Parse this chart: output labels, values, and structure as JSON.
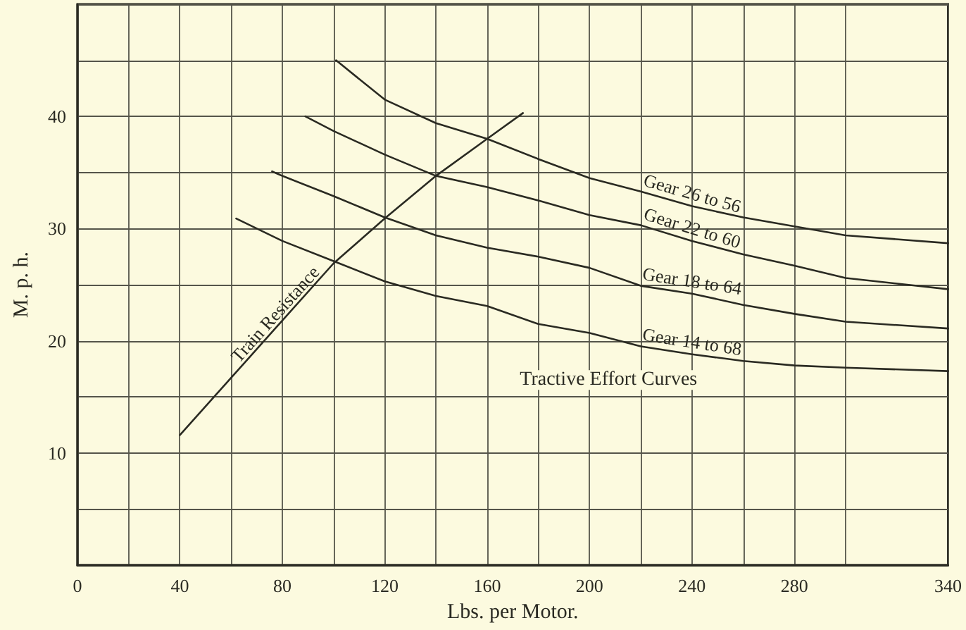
{
  "chart_data": {
    "type": "line",
    "xlabel": "Lbs. per Motor.",
    "ylabel": "M. p. h.",
    "xlim": [
      0,
      340
    ],
    "ylim": [
      0,
      50
    ],
    "xticks": [
      0,
      {
        "value": 20,
        "label": null
      },
      40,
      {
        "value": 60,
        "label": null
      },
      80,
      {
        "value": 100,
        "label": null
      },
      120,
      {
        "value": 140,
        "label": null
      },
      160,
      {
        "value": 180,
        "label": null
      },
      200,
      {
        "value": 220,
        "label": null
      },
      240,
      {
        "value": 260,
        "label": null
      },
      280,
      {
        "value": 300,
        "label": null
      },
      340
    ],
    "yticks": [
      {
        "value": 0,
        "label": null
      },
      {
        "value": 5,
        "label": null
      },
      10,
      {
        "value": 15,
        "label": null
      },
      20,
      {
        "value": 25,
        "label": null
      },
      30,
      {
        "value": 35,
        "label": null
      },
      40,
      {
        "value": 45,
        "label": null
      },
      {
        "value": 50,
        "label": null
      }
    ],
    "grid": true,
    "legend": false,
    "marker": "none",
    "line_style": "solid",
    "series": [
      {
        "name": "Train Resistance",
        "color": "#2a2a22",
        "x": [
          40,
          60,
          80,
          100,
          120,
          140,
          160,
          174
        ],
        "values": [
          11.6,
          16.7,
          21.8,
          26.9,
          30.9,
          34.7,
          38.0,
          40.3
        ]
      },
      {
        "name": "Gear 26 to 56",
        "color": "#2a2a22",
        "x": [
          101,
          120,
          140,
          160,
          180,
          200,
          220,
          240,
          260,
          280,
          300,
          340
        ],
        "values": [
          45,
          41.5,
          39.4,
          38.0,
          36.2,
          34.5,
          33.3,
          32.0,
          31.0,
          30.2,
          29.4,
          28.7
        ]
      },
      {
        "name": "Gear 22 to 60",
        "color": "#2a2a22",
        "x": [
          89,
          100,
          120,
          140,
          160,
          180,
          200,
          220,
          240,
          260,
          280,
          300,
          340
        ],
        "values": [
          40,
          38.7,
          36.6,
          34.7,
          33.7,
          32.5,
          31.2,
          30.3,
          28.9,
          27.7,
          26.7,
          25.6,
          24.6
        ]
      },
      {
        "name": "Gear 18 to 64",
        "color": "#2a2a22",
        "x": [
          76,
          80,
          100,
          120,
          140,
          160,
          180,
          200,
          220,
          240,
          260,
          280,
          300,
          340
        ],
        "values": [
          35.1,
          34.7,
          32.9,
          31.0,
          29.4,
          28.3,
          27.5,
          26.5,
          24.9,
          24.2,
          23.2,
          22.4,
          21.7,
          21.1
        ]
      },
      {
        "name": "Gear 14 to 68",
        "color": "#2a2a22",
        "x": [
          62,
          80,
          100,
          120,
          140,
          160,
          180,
          200,
          220,
          240,
          260,
          280,
          300,
          340
        ],
        "values": [
          30.9,
          28.9,
          27.1,
          25.3,
          24.0,
          23.1,
          21.5,
          20.7,
          19.5,
          18.8,
          18.2,
          17.8,
          17.6,
          17.3
        ]
      }
    ],
    "annotations": [
      "Tractive Effort Curves"
    ]
  }
}
